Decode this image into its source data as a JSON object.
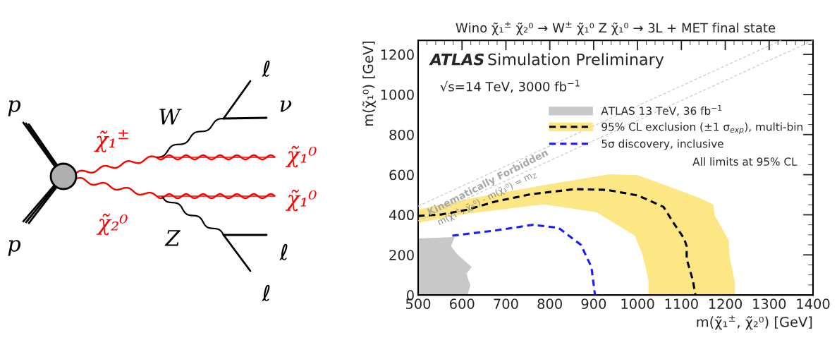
{
  "chart_data": [
    {
      "type": "other",
      "annotations": [
        "p",
        "p",
        "χ̃₁$^{±}$",
        "χ̃₂⁰",
        "W",
        "Z",
        "ℓ",
        "ν",
        "χ̃₁⁰",
        "χ̃₁⁰",
        "ℓ",
        "ℓ"
      ]
    },
    {
      "type": "area",
      "title": "Wino χ̃₁$^{±}$ χ̃₂⁰ → W$^{±}$ χ̃₁⁰ Z χ̃₁⁰ → 3L + MET final state",
      "xlabel": "m(χ̃₁$^{±}$, χ̃₂⁰) [GeV]",
      "ylabel": "m(χ̃₁⁰) [GeV]",
      "xlim": [
        500,
        1400
      ],
      "ylim": [
        0,
        1270
      ],
      "xticks": [
        500,
        600,
        700,
        800,
        900,
        1000,
        1100,
        1200,
        1300,
        1400
      ],
      "yticks": [
        0,
        200,
        400,
        600,
        800,
        1000,
        1200
      ],
      "grid": false,
      "legend": "top right",
      "series": [
        {
          "type": "line",
          "color": "#d0d0d0",
          "line_style": "dashed",
          "x": [
            500,
            1327
          ],
          "values": [
            443,
            1270
          ]
        },
        {
          "type": "line",
          "color": "#d0d0d0",
          "line_style": "dashed",
          "x": [
            500,
            1400
          ],
          "values": [
            370,
            1270
          ]
        },
        {
          "type": "area",
          "name": "ATLAS 13 TeV, 36 fb$^{−1}$",
          "color": "#c8c8c8",
          "x": [
            500,
            583,
            575,
            589,
            622,
            610,
            619,
            613,
            500
          ],
          "values": [
            282,
            289,
            243,
            204,
            139,
            106,
            49,
            0,
            0
          ]
        },
        {
          "type": "area",
          "color": "#fde784",
          "x": [
            500,
            613,
            790,
            935,
            1000,
            1061,
            1139,
            1173,
            1175,
            1208,
            1210,
            1222,
            1222,
            1025,
            1025,
            1011,
            994,
            906,
            787,
            613,
            500
          ],
          "values": [
            426,
            479,
            549,
            602,
            598,
            549,
            486,
            451,
            401,
            271,
            190,
            60,
            0,
            0,
            74,
            204,
            296,
            413,
            452,
            406,
            360
          ]
        },
        {
          "type": "line",
          "name": "95% CL exclusion (±1 σ$_{exp}$), multi-bin",
          "color": "#000000",
          "line_style": "dashed",
          "x": [
            500,
            555,
            613,
            674,
            758,
            857,
            932,
            1001,
            1059,
            1082,
            1106,
            1112,
            1112,
            1126,
            1132
          ],
          "values": [
            394,
            402,
            426,
            465,
            503,
            528,
            524,
            496,
            440,
            360,
            282,
            243,
            180,
            74,
            0
          ]
        },
        {
          "type": "line",
          "name": "5σ discovery, inclusive",
          "color": "#1a1aff",
          "line_style": "dashed",
          "x": [
            578,
            674,
            761,
            820,
            871,
            895,
            903
          ],
          "values": [
            296,
            321,
            350,
            335,
            250,
            139,
            0
          ]
        }
      ],
      "annotations": [
        "ATLAS",
        "Simulation Preliminary",
        "√s=14 TeV, 3000 fb$^{−1}$",
        "All limits at 95% CL",
        "Kinematically Forbidden",
        "m(χ̃₁$^{±}$, χ̃₂⁰) - m(χ̃₁⁰) = m$_{Z}$"
      ]
    }
  ]
}
